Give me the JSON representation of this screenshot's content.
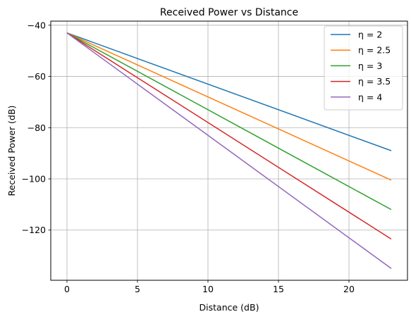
{
  "chart_data": {
    "type": "line",
    "title": "Received Power vs Distance",
    "xlabel": "Distance (dB)",
    "ylabel": "Received Power (dB)",
    "xlim": [
      -1.15,
      24.15
    ],
    "ylim": [
      -139.6,
      -38.4
    ],
    "xticks": [
      0,
      5,
      10,
      15,
      20
    ],
    "yticks": [
      -120,
      -100,
      -80,
      -60,
      -40
    ],
    "grid": true,
    "legend_position": "top-right",
    "x": [
      0,
      23
    ],
    "series": [
      {
        "name": "η = 2",
        "color": "#1f77b4",
        "values": [
          -43,
          -89
        ]
      },
      {
        "name": "η = 2.5",
        "color": "#ff7f0e",
        "values": [
          -43,
          -100.5
        ]
      },
      {
        "name": "η = 3",
        "color": "#2ca02c",
        "values": [
          -43,
          -112
        ]
      },
      {
        "name": "η = 3.5",
        "color": "#d62728",
        "values": [
          -43,
          -123.5
        ]
      },
      {
        "name": "η = 4",
        "color": "#9467bd",
        "values": [
          -43,
          -135
        ]
      }
    ]
  }
}
